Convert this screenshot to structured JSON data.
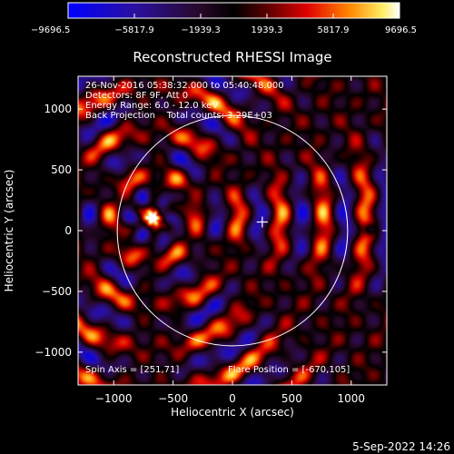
{
  "chart_data": {
    "type": "heatmap",
    "title": "Reconstructed RHESSI Image",
    "xlabel": "Heliocentric X (arcsec)",
    "ylabel": "Heliocentric Y (arcsec)",
    "xlim": [
      -1300,
      1300
    ],
    "ylim": [
      -1270,
      1270
    ],
    "xticks": [
      {
        "value": -1000,
        "label": "−1000"
      },
      {
        "value": -500,
        "label": "−500"
      },
      {
        "value": 0,
        "label": "0"
      },
      {
        "value": 500,
        "label": "500"
      },
      {
        "value": 1000,
        "label": "1000"
      }
    ],
    "yticks": [
      {
        "value": 1000,
        "label": "1000"
      },
      {
        "value": 500,
        "label": "500"
      },
      {
        "value": 0,
        "label": "0"
      },
      {
        "value": -500,
        "label": "−500"
      },
      {
        "value": -1000,
        "label": "−1000"
      }
    ],
    "colorbar": {
      "min": -9696.5,
      "max": 9696.5,
      "ticks": [
        {
          "value": -9696.5,
          "label": "−9696.5"
        },
        {
          "value": -5817.9,
          "label": "−5817.9"
        },
        {
          "value": -1939.3,
          "label": "−1939.3"
        },
        {
          "value": 1939.3,
          "label": "1939.3"
        },
        {
          "value": 5817.9,
          "label": "5817.9"
        },
        {
          "value": 9696.5,
          "label": "9696.5"
        }
      ]
    },
    "annotations": [
      "26-Nov-2016 05:38:32.000 to 05:40:48.000",
      "Detectors: 8F 9F, Att 0",
      "Energy Range: 6.0 - 12.0 keV",
      "Back Projection    Total counts: 3.29E+03"
    ],
    "spin_axis": "Spin Axis = [251,71]",
    "flare_position": "Flare Position = [-670,105]",
    "sun_center": [
      0,
      0
    ],
    "sun_radius": 970,
    "cross_position": [
      251,
      71
    ],
    "peak_source": [
      -670,
      105
    ],
    "grid": false
  },
  "footer": {
    "timestamp": "5-Sep-2022 14:26"
  }
}
